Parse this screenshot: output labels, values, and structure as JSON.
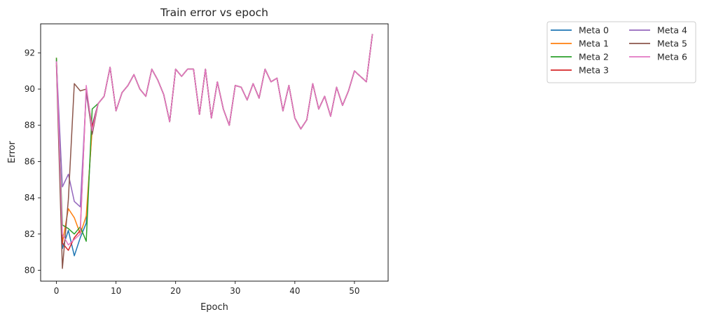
{
  "chart_data": {
    "type": "line",
    "title": "Train error vs epoch",
    "xlabel": "Epoch",
    "ylabel": "Error",
    "xlim": [
      -2.65,
      55.65
    ],
    "ylim": [
      79.4,
      93.6
    ],
    "xticks": [
      0,
      10,
      20,
      30,
      40,
      50
    ],
    "yticks": [
      80,
      82,
      84,
      86,
      88,
      90,
      92
    ],
    "grid": false,
    "legend": {
      "placement": "outside upper right",
      "columns": 2
    },
    "shared_tail": {
      "x_start": 6,
      "values": [
        88.9,
        89.2,
        89.6,
        91.2,
        88.8,
        89.8,
        90.2,
        90.8,
        90.0,
        89.6,
        91.1,
        90.5,
        89.7,
        88.2,
        91.1,
        90.7,
        91.1,
        91.1,
        88.6,
        91.1,
        88.4,
        90.4,
        88.9,
        88.0,
        90.2,
        90.1,
        89.4,
        90.3,
        89.5,
        91.1,
        90.4,
        90.6,
        88.8,
        90.2,
        88.4,
        87.8,
        88.3,
        90.3,
        88.9,
        89.6,
        88.5,
        90.1,
        89.1,
        89.9,
        91.0,
        90.7,
        90.4,
        93.0
      ]
    },
    "series": [
      {
        "name": "Meta 0",
        "color": "#1f77b4",
        "head": [
          91.6,
          81.2,
          82.2,
          80.8,
          81.8,
          82.6,
          88.0
        ]
      },
      {
        "name": "Meta 1",
        "color": "#ff7f0e",
        "head": [
          91.7,
          81.5,
          83.4,
          82.9,
          82.0,
          83.0,
          87.8
        ]
      },
      {
        "name": "Meta 2",
        "color": "#2ca02c",
        "head": [
          91.7,
          82.5,
          82.3,
          82.0,
          82.4,
          81.6,
          88.9
        ]
      },
      {
        "name": "Meta 3",
        "color": "#d62728",
        "head": [
          91.4,
          81.5,
          81.1,
          81.8,
          82.2,
          90.0,
          87.9
        ]
      },
      {
        "name": "Meta 4",
        "color": "#9467bd",
        "head": [
          91.5,
          84.6,
          85.3,
          83.8,
          83.5,
          89.8,
          87.6
        ]
      },
      {
        "name": "Meta 5",
        "color": "#8c564b",
        "head": [
          91.3,
          80.1,
          83.9,
          90.3,
          89.9,
          90.0,
          87.5
        ]
      },
      {
        "name": "Meta 6",
        "color": "#e377c2",
        "head": [
          91.5,
          82.0,
          81.4,
          81.7,
          82.0,
          90.2,
          87.7
        ]
      }
    ]
  }
}
